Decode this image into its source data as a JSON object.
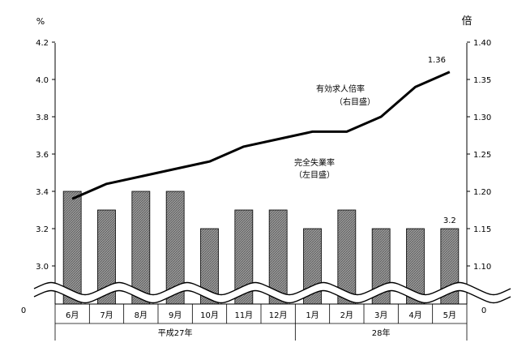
{
  "chart_data": {
    "type": "bar+line",
    "categories": [
      "6月",
      "7月",
      "8月",
      "9月",
      "10月",
      "11月",
      "12月",
      "1月",
      "2月",
      "3月",
      "4月",
      "5月"
    ],
    "year_groups": [
      {
        "label": "平成27年",
        "from": 0,
        "to": 6
      },
      {
        "label": "28年",
        "from": 7,
        "to": 11
      }
    ],
    "left_axis": {
      "unit": "%",
      "ticks": [
        "3.0",
        "3.2",
        "3.4",
        "3.6",
        "3.8",
        "4.0",
        "4.2"
      ],
      "min": 3.0,
      "max": 4.2,
      "step": 0.2,
      "break_zero_label": "0"
    },
    "right_axis": {
      "unit": "倍",
      "ticks": [
        "1.10",
        "1.15",
        "1.20",
        "1.25",
        "1.30",
        "1.35",
        "1.40"
      ],
      "min": 1.1,
      "max": 1.4,
      "step": 0.05,
      "break_zero_label": "0"
    },
    "series": [
      {
        "name": "完全失業率",
        "name_sub": "（左目盛）",
        "type": "bar",
        "axis": "left",
        "values": [
          3.4,
          3.3,
          3.4,
          3.4,
          3.2,
          3.3,
          3.3,
          3.2,
          3.3,
          3.2,
          3.2,
          3.2
        ],
        "last_label": "3.2"
      },
      {
        "name": "有効求人倍率",
        "name_sub": "（右目盛）",
        "type": "line",
        "axis": "right",
        "values": [
          1.19,
          1.21,
          1.22,
          1.23,
          1.24,
          1.26,
          1.27,
          1.28,
          1.28,
          1.3,
          1.34,
          1.36
        ],
        "last_label": "1.36"
      }
    ],
    "colors": {
      "bar_fill": "#8c8c8c",
      "line": "#000000",
      "axis": "#000000"
    }
  }
}
